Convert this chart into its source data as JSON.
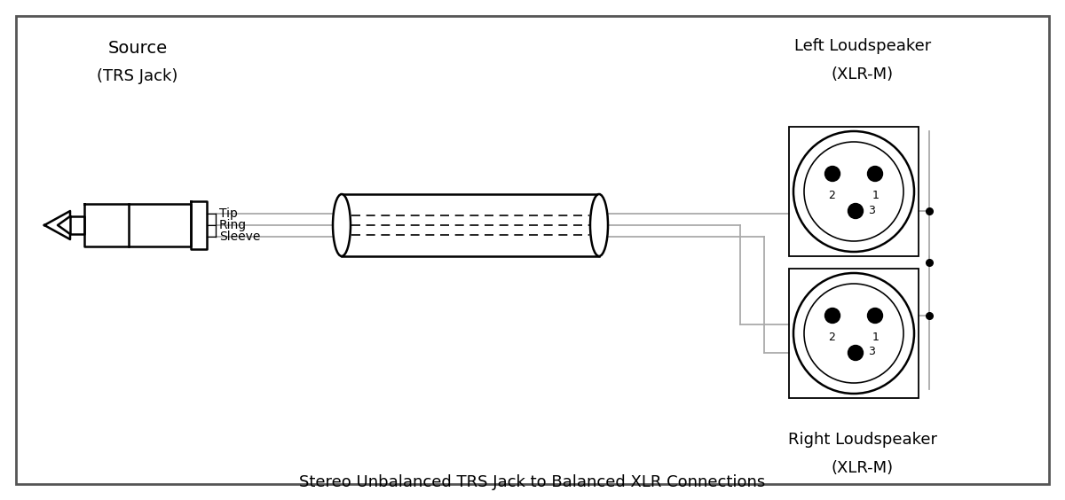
{
  "title": "Stereo Unbalanced TRS Jack to Balanced XLR Connections",
  "source_label1": "Source",
  "source_label2": "(TRS Jack)",
  "left_label1": "Left Loudspeaker",
  "left_label2": "(XLR-M)",
  "right_label1": "Right Loudspeaker",
  "right_label2": "(XLR-M)",
  "trs_labels": [
    "Tip",
    "Ring",
    "Sleeve"
  ],
  "bg_color": "#ffffff",
  "line_color": "#000000",
  "wire_color": "#aaaaaa",
  "figsize": [
    12.0,
    5.64
  ],
  "dpi": 100
}
